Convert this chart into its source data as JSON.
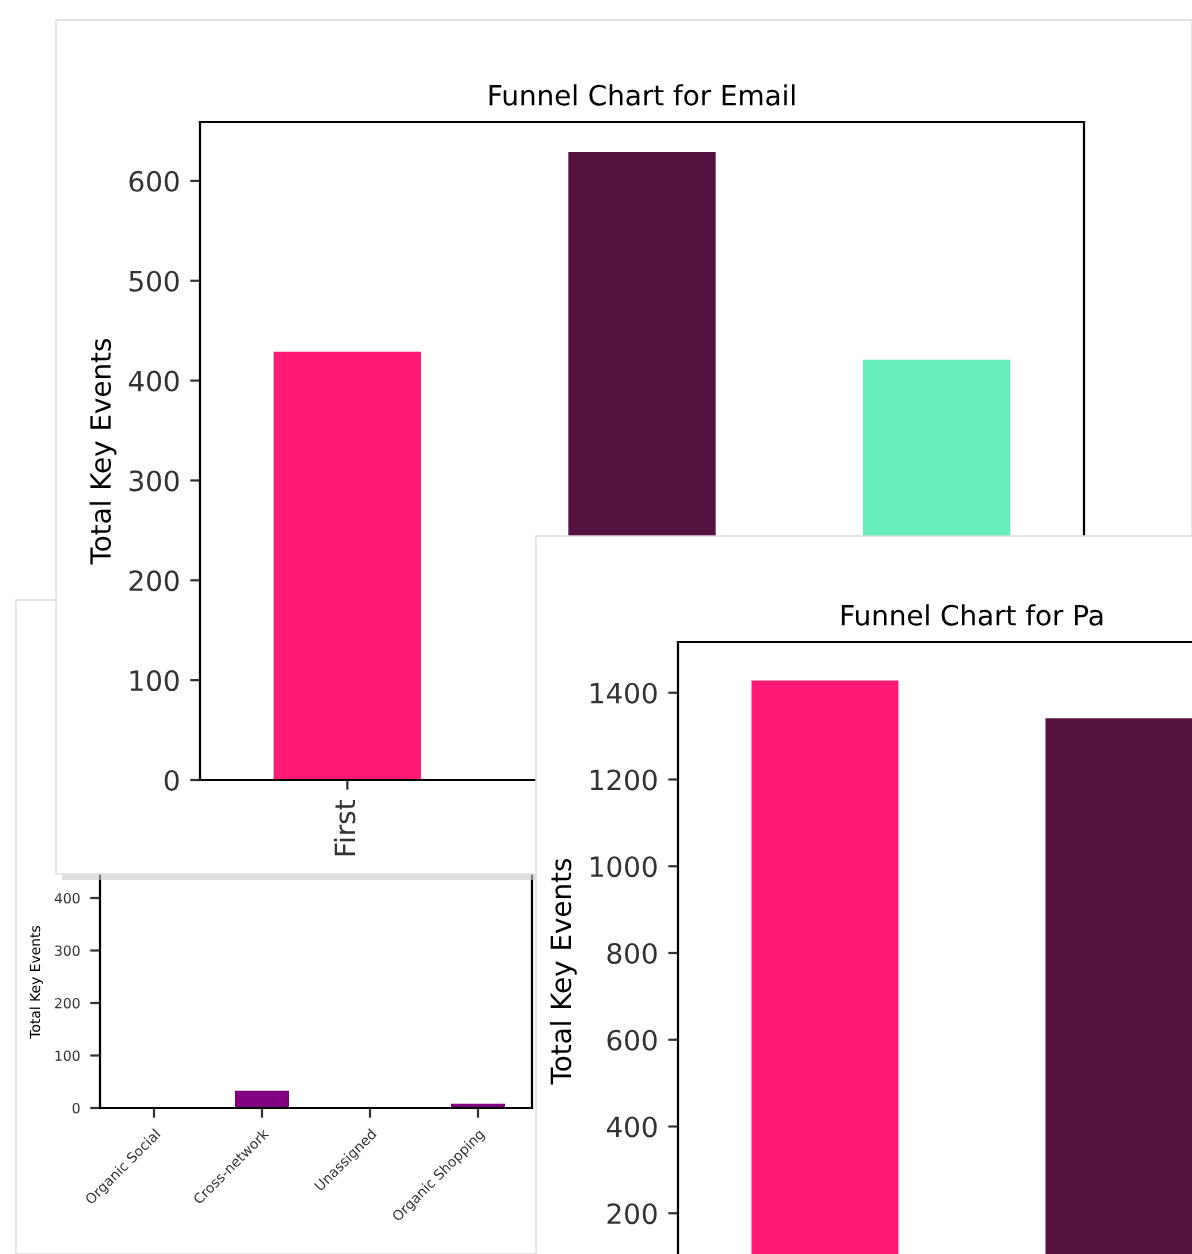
{
  "chart_data": [
    {
      "type": "bar",
      "ylabel": "Total Key Events",
      "categories": [
        "Organic Social",
        "Cross-network",
        "Unassigned",
        "Organic Shopping"
      ],
      "values": [
        0,
        33,
        0,
        8
      ],
      "color": "#800080",
      "ylim": [
        0,
        480
      ],
      "yticks": [
        0,
        100,
        200,
        300,
        400
      ],
      "grid": false
    },
    {
      "type": "bar",
      "title": "Funnel Chart for Email",
      "ylabel": "Total Key Events",
      "categories": [
        "First",
        null,
        null
      ],
      "values": [
        429,
        629,
        421
      ],
      "colors": [
        "#ff1a75",
        "#55113f",
        "#66edbb"
      ],
      "ylim": [
        0,
        659
      ],
      "yticks": [
        0,
        100,
        200,
        300,
        400,
        500,
        600
      ],
      "grid": false
    },
    {
      "type": "bar",
      "title": "Funnel Chart for Pa",
      "ylabel": "Total Key Events",
      "categories": [
        null,
        null
      ],
      "values": [
        1428,
        1341
      ],
      "colors": [
        "#ff1a75",
        "#55113f"
      ],
      "ylim": [
        0,
        1517
      ],
      "yticks": [
        200,
        400,
        600,
        800,
        1000,
        1200,
        1400
      ],
      "grid": false
    }
  ]
}
